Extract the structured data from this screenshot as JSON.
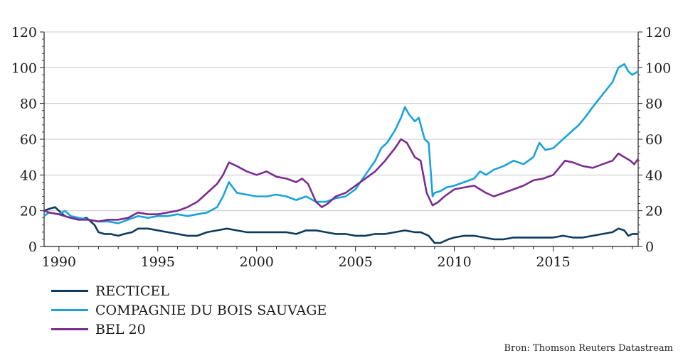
{
  "chart_data": {
    "type": "line",
    "title": "",
    "xlabel": "",
    "ylabel": "",
    "xlim": [
      1989.25,
      2019.3
    ],
    "ylim": [
      0,
      120
    ],
    "yticks": [
      0,
      20,
      40,
      60,
      80,
      100,
      120
    ],
    "xticks": [
      1990,
      1995,
      2000,
      2005,
      2010,
      2015
    ],
    "grid": true,
    "dual_y_axis": true,
    "legend_position": "bottom-left",
    "series": [
      {
        "name": "RECTICEL",
        "color": "#0d3b5e",
        "x": [
          1989.25,
          1989.5,
          1989.8,
          1990.0,
          1990.3,
          1990.6,
          1991.0,
          1991.4,
          1991.8,
          1992.0,
          1992.3,
          1992.6,
          1993.0,
          1993.3,
          1993.7,
          1994.0,
          1994.5,
          1995.0,
          1995.5,
          1996.0,
          1996.5,
          1997.0,
          1997.5,
          1998.0,
          1998.5,
          1999.0,
          1999.5,
          2000.0,
          2000.5,
          2001.0,
          2001.5,
          2002.0,
          2002.5,
          2003.0,
          2003.5,
          2004.0,
          2004.5,
          2005.0,
          2005.5,
          2006.0,
          2006.5,
          2007.0,
          2007.5,
          2008.0,
          2008.3,
          2008.7,
          2009.0,
          2009.3,
          2009.7,
          2010.0,
          2010.5,
          2011.0,
          2011.5,
          2012.0,
          2012.5,
          2013.0,
          2013.5,
          2014.0,
          2014.5,
          2015.0,
          2015.5,
          2016.0,
          2016.5,
          2017.0,
          2017.5,
          2018.0,
          2018.3,
          2018.6,
          2018.8,
          2019.0,
          2019.3
        ],
        "values": [
          20,
          21,
          22,
          20,
          17,
          16,
          15,
          16,
          12,
          8,
          7,
          7,
          6,
          7,
          8,
          10,
          10,
          9,
          8,
          7,
          6,
          6,
          8,
          9,
          10,
          9,
          8,
          8,
          8,
          8,
          8,
          7,
          9,
          9,
          8,
          7,
          7,
          6,
          6,
          7,
          7,
          8,
          9,
          8,
          8,
          6,
          2,
          2,
          4,
          5,
          6,
          6,
          5,
          4,
          4,
          5,
          5,
          5,
          5,
          5,
          6,
          5,
          5,
          6,
          7,
          8,
          10,
          9,
          6,
          7,
          7
        ]
      },
      {
        "name": "COMPAGNIE DU BOIS SAUVAGE",
        "color": "#1aa3d9",
        "x": [
          1989.25,
          1989.5,
          1990.0,
          1990.3,
          1990.6,
          1991.0,
          1991.5,
          1992.0,
          1992.5,
          1993.0,
          1993.5,
          1994.0,
          1994.5,
          1995.0,
          1995.5,
          1996.0,
          1996.5,
          1997.0,
          1997.5,
          1998.0,
          1998.3,
          1998.6,
          1999.0,
          1999.5,
          2000.0,
          2000.5,
          2001.0,
          2001.5,
          2002.0,
          2002.5,
          2003.0,
          2003.5,
          2004.0,
          2004.5,
          2005.0,
          2005.5,
          2006.0,
          2006.3,
          2006.6,
          2007.0,
          2007.3,
          2007.5,
          2007.7,
          2008.0,
          2008.2,
          2008.5,
          2008.7,
          2008.9,
          2009.0,
          2009.3,
          2009.6,
          2010.0,
          2010.5,
          2011.0,
          2011.3,
          2011.6,
          2012.0,
          2012.5,
          2013.0,
          2013.5,
          2014.0,
          2014.3,
          2014.6,
          2015.0,
          2015.5,
          2016.0,
          2016.3,
          2016.6,
          2017.0,
          2017.5,
          2018.0,
          2018.3,
          2018.6,
          2018.8,
          2019.0,
          2019.3
        ],
        "values": [
          17,
          19,
          18,
          20,
          17,
          16,
          15,
          14,
          14,
          13,
          15,
          17,
          16,
          17,
          17,
          18,
          17,
          18,
          19,
          22,
          28,
          36,
          30,
          29,
          28,
          28,
          29,
          28,
          26,
          28,
          25,
          25,
          27,
          28,
          32,
          40,
          48,
          55,
          58,
          65,
          72,
          78,
          74,
          70,
          72,
          60,
          58,
          28,
          30,
          31,
          33,
          34,
          36,
          38,
          42,
          40,
          43,
          45,
          48,
          46,
          50,
          58,
          54,
          55,
          60,
          65,
          68,
          72,
          78,
          85,
          92,
          100,
          102,
          98,
          96,
          98
        ]
      },
      {
        "name": "BEL 20",
        "color": "#7b2d8e",
        "x": [
          1989.25,
          1989.5,
          1990.0,
          1990.3,
          1990.6,
          1991.0,
          1991.5,
          1992.0,
          1992.5,
          1993.0,
          1993.5,
          1994.0,
          1994.5,
          1995.0,
          1995.5,
          1996.0,
          1996.5,
          1997.0,
          1997.5,
          1998.0,
          1998.3,
          1998.6,
          1999.0,
          1999.5,
          2000.0,
          2000.5,
          2001.0,
          2001.5,
          2002.0,
          2002.3,
          2002.6,
          2003.0,
          2003.3,
          2003.6,
          2004.0,
          2004.5,
          2005.0,
          2005.5,
          2006.0,
          2006.5,
          2007.0,
          2007.3,
          2007.6,
          2008.0,
          2008.3,
          2008.6,
          2008.9,
          2009.2,
          2009.5,
          2010.0,
          2010.5,
          2011.0,
          2011.3,
          2011.6,
          2012.0,
          2012.5,
          2013.0,
          2013.5,
          2014.0,
          2014.5,
          2015.0,
          2015.3,
          2015.6,
          2016.0,
          2016.5,
          2017.0,
          2017.5,
          2018.0,
          2018.3,
          2018.6,
          2018.9,
          2019.1,
          2019.3
        ],
        "values": [
          20,
          19,
          18,
          17,
          16,
          15,
          15,
          14,
          15,
          15,
          16,
          19,
          18,
          18,
          19,
          20,
          22,
          25,
          30,
          35,
          40,
          47,
          45,
          42,
          40,
          42,
          39,
          38,
          36,
          38,
          35,
          25,
          22,
          24,
          28,
          30,
          34,
          38,
          42,
          48,
          55,
          60,
          58,
          50,
          48,
          30,
          23,
          25,
          28,
          32,
          33,
          34,
          32,
          30,
          28,
          30,
          32,
          34,
          37,
          38,
          40,
          44,
          48,
          47,
          45,
          44,
          46,
          48,
          52,
          50,
          48,
          46,
          49
        ]
      }
    ]
  },
  "source_text": "Bron: Thomson Reuters Datastream"
}
